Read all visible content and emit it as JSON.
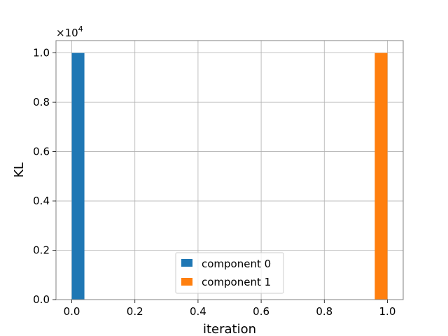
{
  "chart_data": {
    "type": "bar",
    "xlabel": "iteration",
    "ylabel": "KL",
    "xlim": [
      -0.05,
      1.05
    ],
    "ylim": [
      0,
      1.05
    ],
    "xticks": [
      0.0,
      0.2,
      0.4,
      0.6,
      0.8,
      1.0
    ],
    "xtick_labels": [
      "0.0",
      "0.2",
      "0.4",
      "0.6",
      "0.8",
      "1.0"
    ],
    "yticks": [
      0.0,
      0.2,
      0.4,
      0.6,
      0.8,
      1.0
    ],
    "ytick_labels": [
      "0.0",
      "0.2",
      "0.4",
      "0.6",
      "0.8",
      "1.0"
    ],
    "y_scale_prefix": "×10",
    "y_scale_exponent": "4",
    "grid": true,
    "legend_position": "lower-center",
    "bar_width": 0.04,
    "series": [
      {
        "name": "component 0",
        "color": "#1f77b4",
        "x": [
          0.0
        ],
        "values": [
          1.0
        ]
      },
      {
        "name": "component 1",
        "color": "#ff7f0e",
        "x": [
          0.96
        ],
        "values": [
          1.0
        ]
      }
    ]
  }
}
